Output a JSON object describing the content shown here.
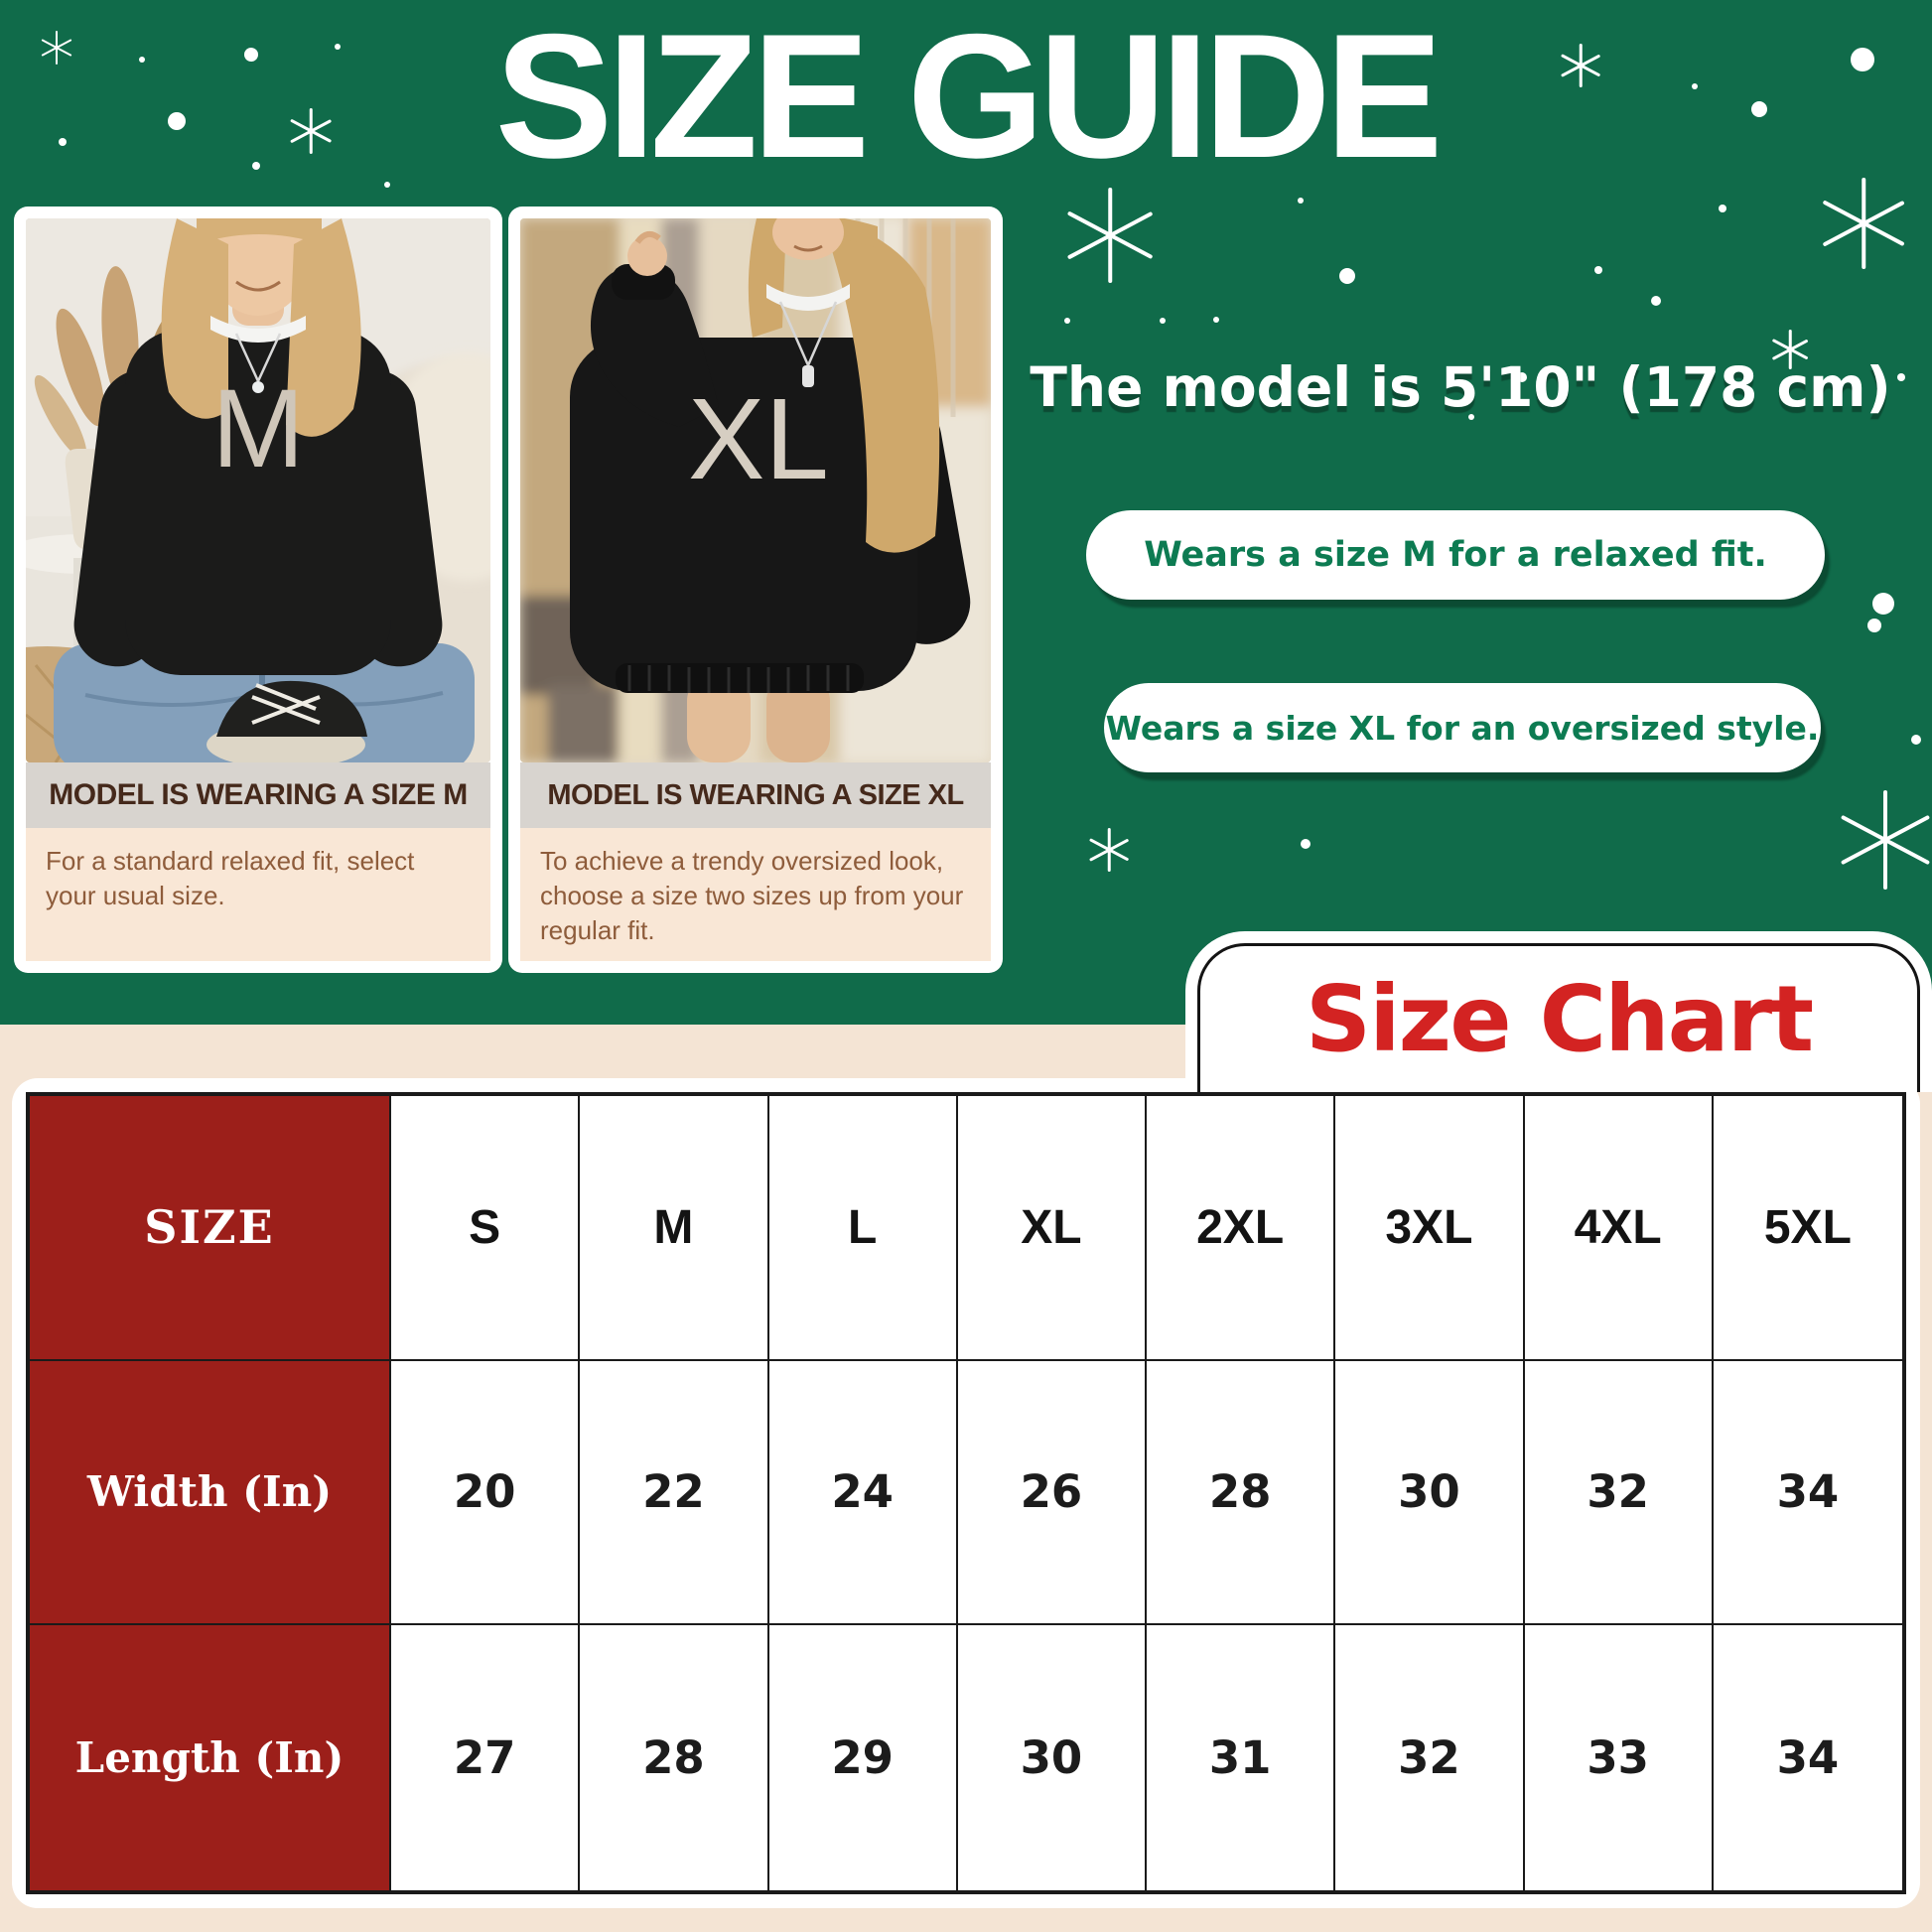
{
  "title": "SIZE GUIDE",
  "model_info": {
    "height_text": "The model is 5'10\" (178 cm)",
    "badge_m": "Wears a size M for a relaxed fit.",
    "badge_xl": "Wears a size XL for an oversized style."
  },
  "photo_cards": [
    {
      "letter": "M",
      "caption": "MODEL IS WEARING A SIZE M",
      "description": "For a standard relaxed fit, select your usual size."
    },
    {
      "letter": "XL",
      "caption": "MODEL IS WEARING A SIZE XL",
      "description": "To achieve a trendy oversized look, choose a size two sizes up from your regular fit."
    }
  ],
  "size_chart": {
    "heading": "Size Chart",
    "columns": [
      "SIZE",
      "S",
      "M",
      "L",
      "XL",
      "2XL",
      "3XL",
      "4XL",
      "5XL"
    ],
    "rows": [
      {
        "label": "Width (In)",
        "values": [
          20,
          22,
          24,
          26,
          28,
          30,
          32,
          34
        ]
      },
      {
        "label": "Length (In)",
        "values": [
          27,
          28,
          29,
          30,
          31,
          32,
          33,
          34
        ]
      }
    ]
  },
  "chart_data": {
    "type": "table",
    "title": "Size Chart",
    "columns": [
      "SIZE",
      "S",
      "M",
      "L",
      "XL",
      "2XL",
      "3XL",
      "4XL",
      "5XL"
    ],
    "rows": [
      [
        "Width (In)",
        20,
        22,
        24,
        26,
        28,
        30,
        32,
        34
      ],
      [
        "Length (In)",
        27,
        28,
        29,
        30,
        31,
        32,
        33,
        34
      ]
    ]
  },
  "colors": {
    "green_bg": "#106b4a",
    "cream_bg": "#f4e4d4",
    "pill_text_green": "#0d7b52",
    "heading_red": "#d32322",
    "table_label_red": "#9c1f1a",
    "caption_brown": "#45291b",
    "desc_brown": "#8e5c3b",
    "caption_grey_bg": "#d8d4cf",
    "desc_peach_bg": "#f9e7d6"
  },
  "decorations": {
    "dots": [
      [
        143,
        60,
        3
      ],
      [
        253,
        55,
        7
      ],
      [
        340,
        47,
        3
      ],
      [
        178,
        122,
        9
      ],
      [
        63,
        143,
        4
      ],
      [
        258,
        167,
        4
      ],
      [
        390,
        186,
        3
      ],
      [
        1707,
        87,
        3
      ],
      [
        1876,
        60,
        12
      ],
      [
        1772,
        110,
        8
      ],
      [
        1735,
        210,
        4
      ],
      [
        1610,
        272,
        4
      ],
      [
        1668,
        303,
        5
      ],
      [
        1915,
        380,
        4
      ],
      [
        1533,
        380,
        5
      ],
      [
        1482,
        420,
        3
      ],
      [
        1310,
        202,
        3
      ],
      [
        1357,
        278,
        8
      ],
      [
        1075,
        323,
        3
      ],
      [
        1171,
        323,
        3
      ],
      [
        1225,
        322,
        3
      ],
      [
        1297,
        557,
        4
      ],
      [
        1403,
        563,
        3
      ],
      [
        1705,
        566,
        4
      ],
      [
        1888,
        630,
        7
      ],
      [
        1201,
        757,
        3
      ],
      [
        1930,
        745,
        5
      ],
      [
        1315,
        850,
        5
      ],
      [
        1897,
        608,
        11
      ]
    ],
    "snowflakes": [
      [
        57,
        48,
        34,
        2
      ],
      [
        313,
        132,
        46,
        2.5
      ],
      [
        1118,
        237,
        96,
        3.5
      ],
      [
        1592,
        66,
        44,
        2.5
      ],
      [
        1877,
        225,
        92,
        3.5
      ],
      [
        1803,
        352,
        40,
        2.5
      ],
      [
        1117,
        856,
        44,
        2.5
      ],
      [
        1899,
        846,
        100,
        4
      ]
    ]
  }
}
